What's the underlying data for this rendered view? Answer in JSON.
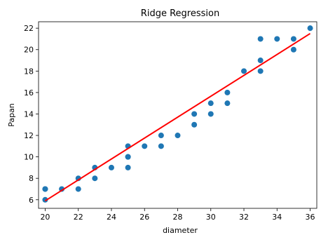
{
  "chart_data": {
    "type": "scatter",
    "title": "Ridge Regression",
    "xlabel": "diameter",
    "ylabel": "Papan",
    "xlim": [
      19.6,
      36.4
    ],
    "ylim": [
      5.2,
      22.6
    ],
    "xticks": [
      20,
      22,
      24,
      26,
      28,
      30,
      32,
      34,
      36
    ],
    "yticks": [
      6,
      8,
      10,
      12,
      14,
      16,
      18,
      20,
      22
    ],
    "grid": false,
    "point_color": "#1f77b4",
    "line_color": "#ff0000",
    "series": [
      {
        "type": "scatter",
        "x": [
          20,
          20,
          20,
          21,
          22,
          22,
          23,
          23,
          24,
          25,
          25,
          25,
          25,
          26,
          27,
          27,
          28,
          29,
          29,
          30,
          30,
          31,
          31,
          32,
          33,
          33,
          33,
          34,
          35,
          35,
          36
        ],
        "y": [
          6,
          7,
          7,
          7,
          7,
          8,
          8,
          9,
          9,
          9,
          10,
          10,
          11,
          11,
          11,
          12,
          12,
          13,
          14,
          14,
          15,
          15,
          16,
          18,
          18,
          19,
          21,
          21,
          20,
          21,
          22
        ]
      },
      {
        "type": "line",
        "x": [
          20,
          36
        ],
        "y": [
          5.9,
          21.5
        ]
      }
    ]
  }
}
